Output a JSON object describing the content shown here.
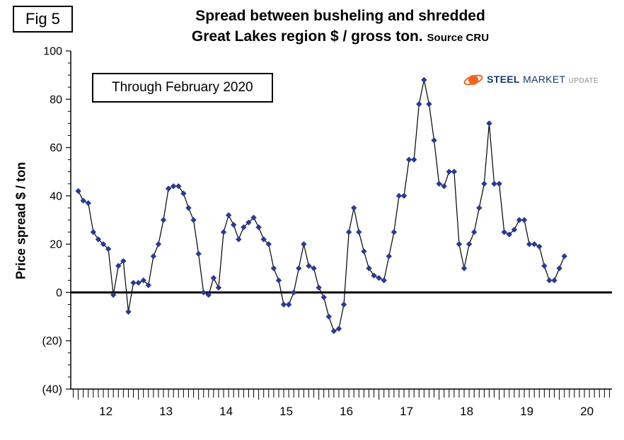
{
  "fig_label": "Fig 5",
  "annotation": "Through February 2020",
  "logo": {
    "word1": "STEEL",
    "word2": "MARKET",
    "word3": "UPDATE",
    "accent_color": "#F26522",
    "text_color": "#16376E",
    "update_color": "#8C8C8C"
  },
  "chart_data": {
    "type": "line",
    "title": "Spread between busheling and shredded",
    "subtitle": "Great Lakes region $ / gross ton.",
    "source_note": "Source CRU",
    "ylabel": "Price spread $ / ton",
    "series_name": "Busheling minus shredded price spread, $ / gross ton",
    "frequency": "monthly",
    "x_start": "2012-01",
    "x_end": "2020-02",
    "x_tick_labels": [
      "12",
      "13",
      "14",
      "15",
      "16",
      "17",
      "18",
      "19",
      "20"
    ],
    "y_ticks": [
      100,
      80,
      60,
      40,
      20,
      0,
      -20,
      -40
    ],
    "y_tick_labels": [
      "100",
      "80",
      "60",
      "40",
      "20",
      "0",
      "(20)",
      "(40)"
    ],
    "ylim": [
      -40,
      100
    ],
    "grid": false,
    "zero_line": true,
    "legend": "none",
    "marker": "diamond",
    "marker_color": "#2B3990",
    "line_color": "#000000",
    "values": [
      42,
      38,
      37,
      25,
      22,
      20,
      18,
      -1,
      11,
      13,
      -8,
      4,
      4,
      5,
      3,
      15,
      20,
      30,
      43,
      44,
      44,
      41,
      35,
      30,
      16,
      0,
      -1,
      6,
      2,
      25,
      32,
      28,
      22,
      27,
      29,
      31,
      27,
      22,
      20,
      10,
      5,
      -5,
      -5,
      0,
      10,
      20,
      11,
      10,
      2,
      -2,
      -10,
      -16,
      -15,
      -5,
      25,
      35,
      25,
      17,
      10,
      7,
      6,
      5,
      15,
      25,
      40,
      40,
      55,
      55,
      78,
      88,
      78,
      63,
      45,
      44,
      50,
      50,
      20,
      10,
      20,
      25,
      35,
      45,
      70,
      45,
      45,
      25,
      24,
      26,
      30,
      30,
      20,
      20,
      19,
      11,
      5,
      5,
      10,
      15
    ]
  }
}
